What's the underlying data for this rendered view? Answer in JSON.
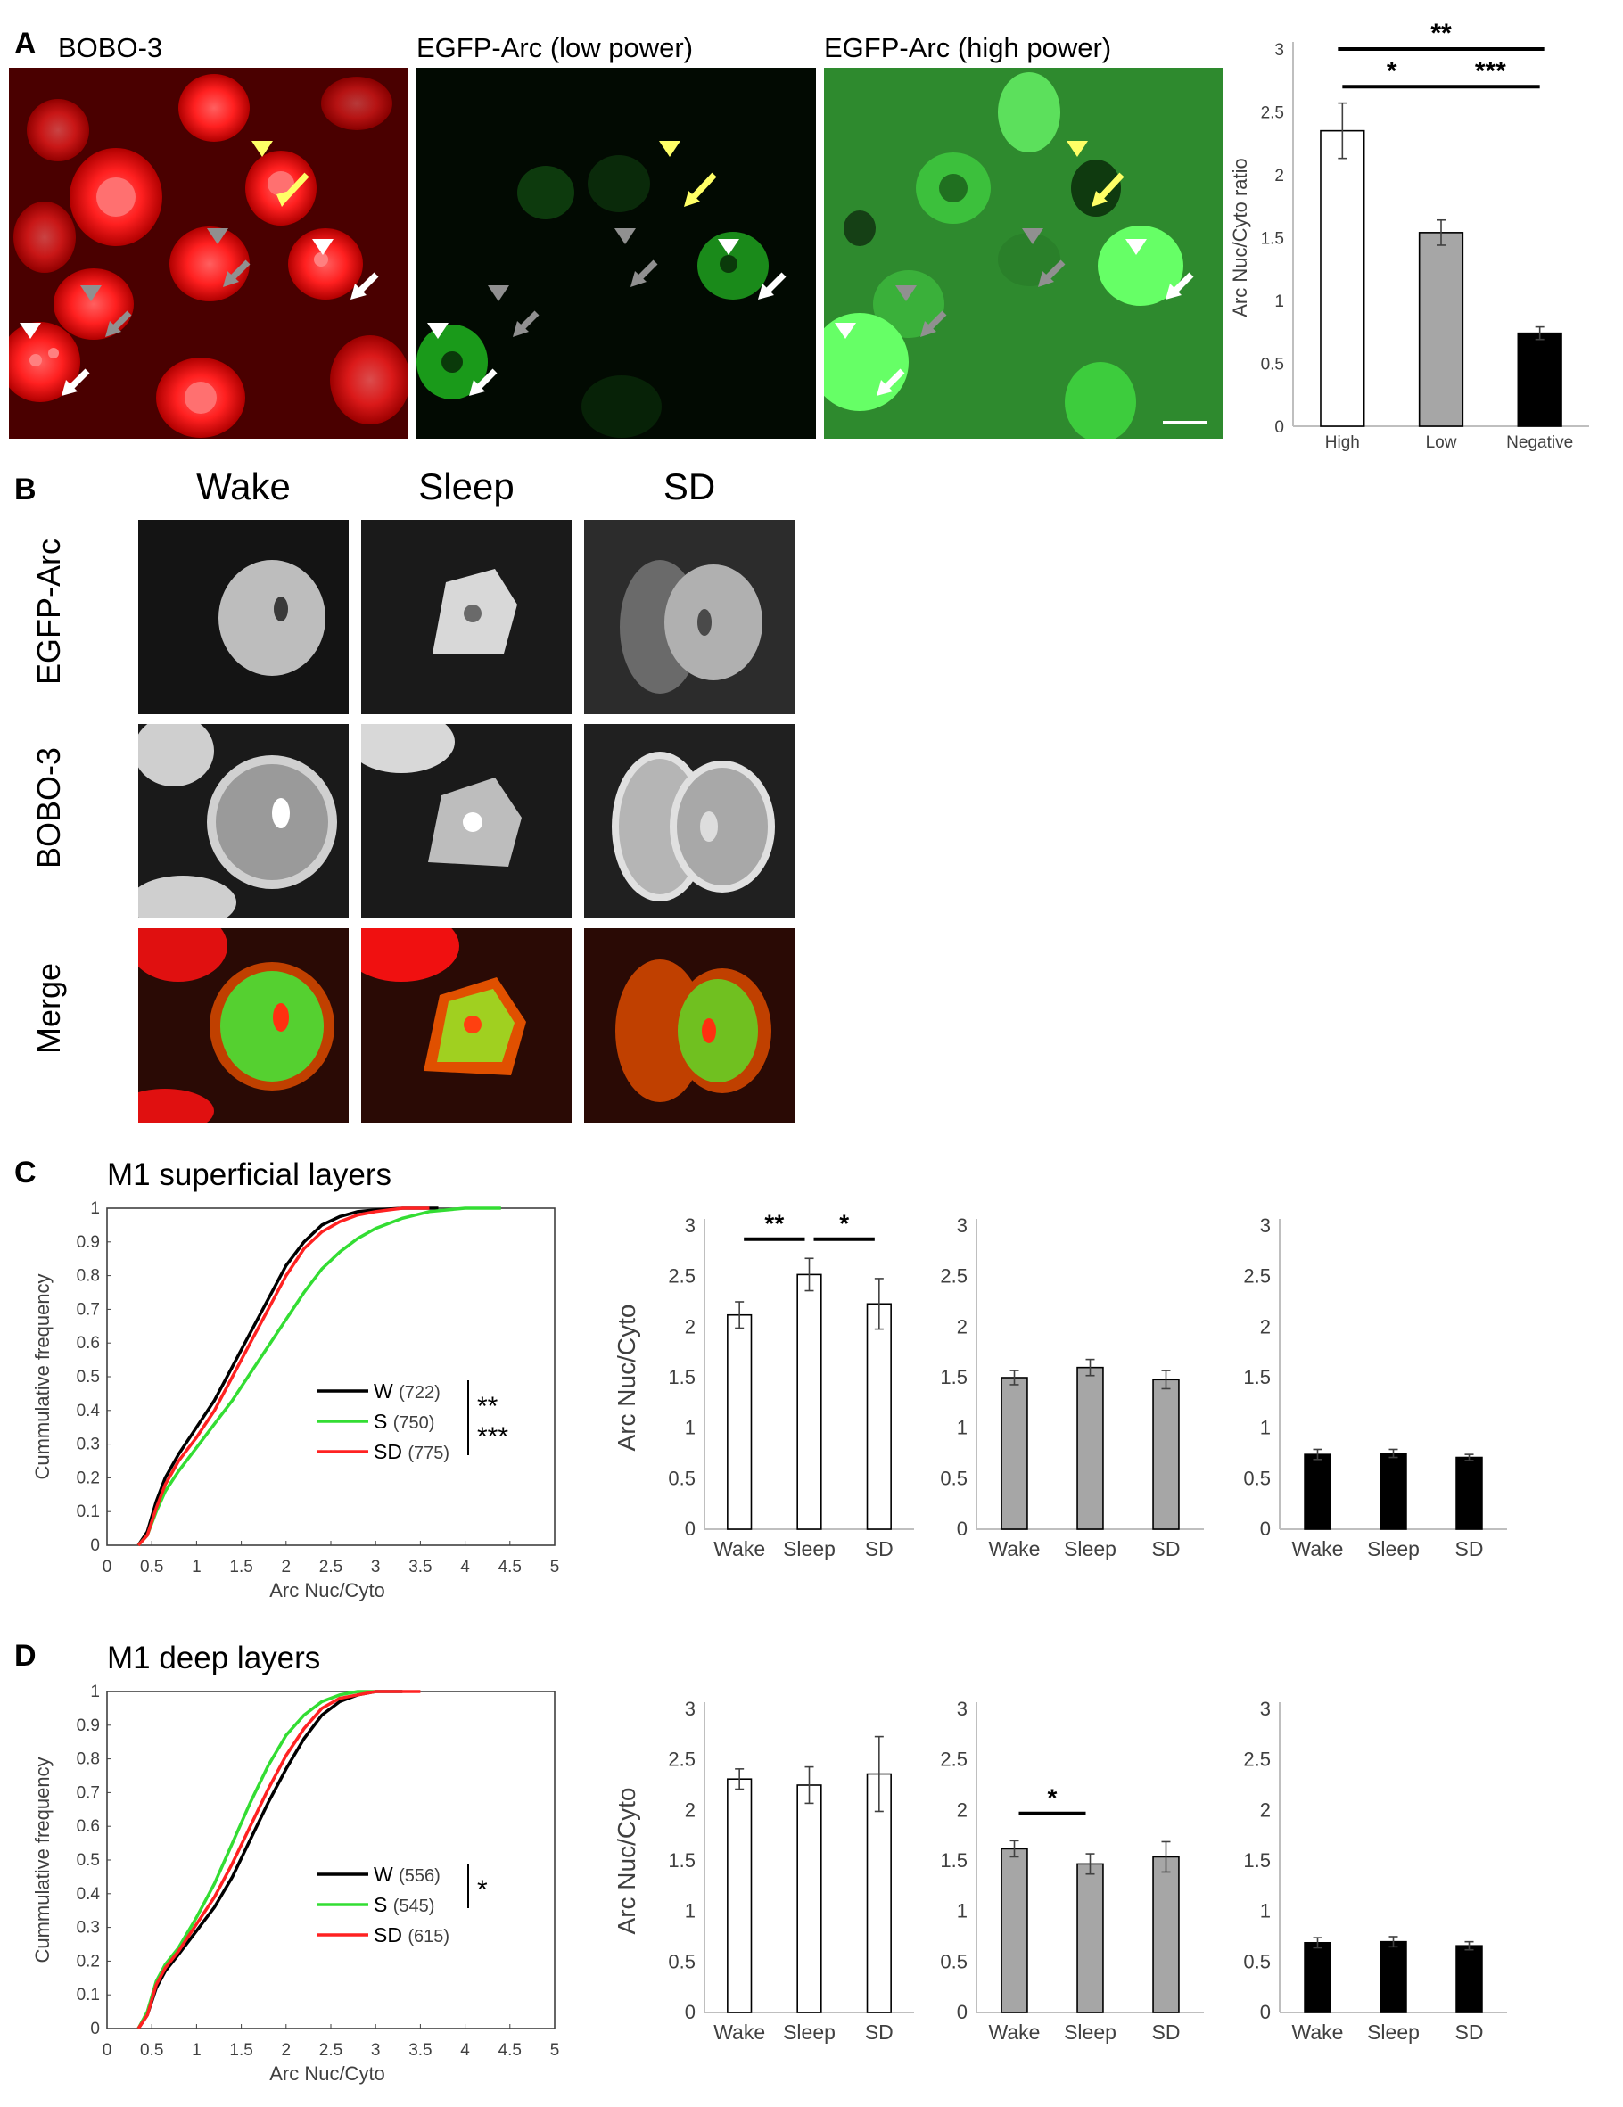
{
  "panelA": {
    "label": "A",
    "images": [
      {
        "title": "BOBO-3",
        "channel": "red"
      },
      {
        "title": "EGFP-Arc (low power)",
        "channel": "green-low"
      },
      {
        "title": "EGFP-Arc (high power)",
        "channel": "green-high"
      }
    ],
    "colors": {
      "red": "#ff1a1a",
      "green": "#22dd22",
      "yellow": "#ffff66",
      "gray": "#909090",
      "white": "#ffffff"
    }
  },
  "panelB": {
    "label": "B",
    "columns": [
      "Wake",
      "Sleep",
      "SD"
    ],
    "rows": [
      "EGFP-Arc",
      "BOBO-3",
      "Merge"
    ]
  },
  "panelC": {
    "label": "C",
    "title": "M1 superficial layers"
  },
  "panelD": {
    "label": "D",
    "title": "M1 deep layers"
  },
  "chart_data": [
    {
      "id": "A-bar",
      "type": "bar",
      "categories": [
        "High",
        "Low",
        "Negative"
      ],
      "values": [
        2.35,
        1.54,
        0.74
      ],
      "errors": [
        0.22,
        0.1,
        0.05
      ],
      "colors": [
        "#ffffff",
        "#a6a6a6",
        "#000000"
      ],
      "ylabel": "Arc Nuc/Cyto ratio",
      "ylim": [
        0,
        3
      ],
      "yticks": [
        0,
        0.5,
        1,
        1.5,
        2,
        2.5,
        3
      ],
      "significance": [
        {
          "from": 0,
          "to": 2,
          "label": "**",
          "level": 3.0
        },
        {
          "from": 0,
          "to": 1,
          "label": "*",
          "level": 2.7
        },
        {
          "from": 1,
          "to": 2,
          "label": "***",
          "level": 2.7
        }
      ]
    },
    {
      "id": "C-cdf",
      "type": "line",
      "xlabel": "Arc Nuc/Cyto",
      "ylabel": "Cummulative frequency",
      "xlim": [
        0,
        5
      ],
      "ylim": [
        0,
        1
      ],
      "xticks": [
        0,
        0.5,
        1,
        1.5,
        2,
        2.5,
        3,
        3.5,
        4,
        4.5,
        5
      ],
      "yticks": [
        0,
        0.1,
        0.2,
        0.3,
        0.4,
        0.5,
        0.6,
        0.7,
        0.8,
        0.9,
        1
      ],
      "series": [
        {
          "name": "W",
          "n": "(722)",
          "color": "#000000",
          "x": [
            0.35,
            0.45,
            0.55,
            0.65,
            0.8,
            1.0,
            1.2,
            1.4,
            1.6,
            1.8,
            2.0,
            2.2,
            2.4,
            2.6,
            2.8,
            3.0,
            3.3,
            3.7
          ],
          "y": [
            0,
            0.04,
            0.13,
            0.2,
            0.27,
            0.35,
            0.43,
            0.53,
            0.63,
            0.73,
            0.83,
            0.9,
            0.95,
            0.975,
            0.99,
            0.995,
            1,
            1
          ]
        },
        {
          "name": "S",
          "n": "(750)",
          "color": "#33dd33",
          "x": [
            0.35,
            0.45,
            0.55,
            0.65,
            0.8,
            1.0,
            1.2,
            1.4,
            1.6,
            1.8,
            2.0,
            2.2,
            2.4,
            2.6,
            2.8,
            3.0,
            3.3,
            3.6,
            4.0,
            4.4
          ],
          "y": [
            0,
            0.03,
            0.1,
            0.16,
            0.22,
            0.29,
            0.36,
            0.43,
            0.51,
            0.59,
            0.67,
            0.75,
            0.82,
            0.87,
            0.91,
            0.94,
            0.97,
            0.99,
            1,
            1
          ]
        },
        {
          "name": "SD",
          "n": "(775)",
          "color": "#ff2222",
          "x": [
            0.35,
            0.45,
            0.55,
            0.65,
            0.8,
            1.0,
            1.2,
            1.4,
            1.6,
            1.8,
            2.0,
            2.2,
            2.4,
            2.6,
            2.8,
            3.0,
            3.3,
            3.6
          ],
          "y": [
            0,
            0.03,
            0.11,
            0.18,
            0.25,
            0.32,
            0.4,
            0.5,
            0.6,
            0.7,
            0.8,
            0.88,
            0.93,
            0.96,
            0.98,
            0.99,
            1,
            1
          ]
        }
      ],
      "significance": [
        {
          "between": [
            "W",
            "S"
          ],
          "label": "**"
        },
        {
          "between": [
            "S",
            "SD"
          ],
          "label": "***"
        }
      ]
    },
    {
      "id": "C-bar-high",
      "type": "bar",
      "categories": [
        "Wake",
        "Sleep",
        "SD"
      ],
      "values": [
        2.12,
        2.52,
        2.23
      ],
      "errors": [
        0.13,
        0.16,
        0.25
      ],
      "color": "#ffffff",
      "ylabel": "Arc Nuc/Cyto",
      "ylim": [
        0,
        3
      ],
      "yticks": [
        0,
        0.5,
        1,
        1.5,
        2,
        2.5,
        3
      ],
      "significance": [
        {
          "from": 0,
          "to": 1,
          "label": "**",
          "level": 2.87
        },
        {
          "from": 1,
          "to": 2,
          "label": "*",
          "level": 2.87
        }
      ]
    },
    {
      "id": "C-bar-low",
      "type": "bar",
      "categories": [
        "Wake",
        "Sleep",
        "SD"
      ],
      "values": [
        1.5,
        1.6,
        1.48
      ],
      "errors": [
        0.07,
        0.08,
        0.09
      ],
      "color": "#a6a6a6",
      "ylim": [
        0,
        3
      ],
      "yticks": [
        0,
        0.5,
        1,
        1.5,
        2,
        2.5,
        3
      ],
      "significance": []
    },
    {
      "id": "C-bar-neg",
      "type": "bar",
      "categories": [
        "Wake",
        "Sleep",
        "SD"
      ],
      "values": [
        0.74,
        0.75,
        0.71
      ],
      "errors": [
        0.05,
        0.04,
        0.03
      ],
      "color": "#000000",
      "ylim": [
        0,
        3
      ],
      "yticks": [
        0,
        0.5,
        1,
        1.5,
        2,
        2.5,
        3
      ],
      "significance": []
    },
    {
      "id": "D-cdf",
      "type": "line",
      "xlabel": "Arc Nuc/Cyto",
      "ylabel": "Cummulative frequency",
      "xlim": [
        0,
        5
      ],
      "ylim": [
        0,
        1
      ],
      "xticks": [
        0,
        0.5,
        1,
        1.5,
        2,
        2.5,
        3,
        3.5,
        4,
        4.5,
        5
      ],
      "yticks": [
        0,
        0.1,
        0.2,
        0.3,
        0.4,
        0.5,
        0.6,
        0.7,
        0.8,
        0.9,
        1
      ],
      "series": [
        {
          "name": "W",
          "n": "(556)",
          "color": "#000000",
          "x": [
            0.35,
            0.45,
            0.55,
            0.65,
            0.8,
            1.0,
            1.2,
            1.4,
            1.6,
            1.8,
            2.0,
            2.2,
            2.4,
            2.6,
            2.8,
            3.0,
            3.3
          ],
          "y": [
            0,
            0.04,
            0.12,
            0.17,
            0.22,
            0.29,
            0.36,
            0.45,
            0.56,
            0.67,
            0.77,
            0.86,
            0.93,
            0.97,
            0.99,
            1,
            1
          ]
        },
        {
          "name": "S",
          "n": "(545)",
          "color": "#33dd33",
          "x": [
            0.35,
            0.45,
            0.55,
            0.65,
            0.8,
            1.0,
            1.2,
            1.4,
            1.6,
            1.8,
            2.0,
            2.2,
            2.4,
            2.6,
            2.8,
            3.0
          ],
          "y": [
            0,
            0.05,
            0.14,
            0.19,
            0.24,
            0.33,
            0.43,
            0.55,
            0.67,
            0.78,
            0.87,
            0.93,
            0.97,
            0.99,
            1,
            1
          ]
        },
        {
          "name": "SD",
          "n": "(615)",
          "color": "#ff2222",
          "x": [
            0.35,
            0.45,
            0.55,
            0.65,
            0.8,
            1.0,
            1.2,
            1.4,
            1.6,
            1.8,
            2.0,
            2.2,
            2.4,
            2.6,
            2.8,
            3.0,
            3.5
          ],
          "y": [
            0,
            0.04,
            0.13,
            0.18,
            0.23,
            0.31,
            0.39,
            0.49,
            0.6,
            0.71,
            0.81,
            0.89,
            0.95,
            0.98,
            0.99,
            1,
            1
          ]
        }
      ],
      "significance": [
        {
          "between": [
            "W",
            "S"
          ],
          "label": "*"
        }
      ]
    },
    {
      "id": "D-bar-high",
      "type": "bar",
      "categories": [
        "Wake",
        "Sleep",
        "SD"
      ],
      "values": [
        2.31,
        2.25,
        2.36
      ],
      "errors": [
        0.1,
        0.18,
        0.37
      ],
      "color": "#ffffff",
      "ylabel": "Arc Nuc/Cyto",
      "ylim": [
        0,
        3
      ],
      "yticks": [
        0,
        0.5,
        1,
        1.5,
        2,
        2.5,
        3
      ],
      "significance": []
    },
    {
      "id": "D-bar-low",
      "type": "bar",
      "categories": [
        "Wake",
        "Sleep",
        "SD"
      ],
      "values": [
        1.62,
        1.47,
        1.54
      ],
      "errors": [
        0.08,
        0.1,
        0.15
      ],
      "color": "#a6a6a6",
      "ylim": [
        0,
        3
      ],
      "yticks": [
        0,
        0.5,
        1,
        1.5,
        2,
        2.5,
        3
      ],
      "significance": [
        {
          "from": 0,
          "to": 1,
          "label": "*",
          "level": 1.97
        }
      ]
    },
    {
      "id": "D-bar-neg",
      "type": "bar",
      "categories": [
        "Wake",
        "Sleep",
        "SD"
      ],
      "values": [
        0.69,
        0.7,
        0.66
      ],
      "errors": [
        0.05,
        0.05,
        0.04
      ],
      "color": "#000000",
      "ylim": [
        0,
        3
      ],
      "yticks": [
        0,
        0.5,
        1,
        1.5,
        2,
        2.5,
        3
      ],
      "significance": []
    }
  ]
}
